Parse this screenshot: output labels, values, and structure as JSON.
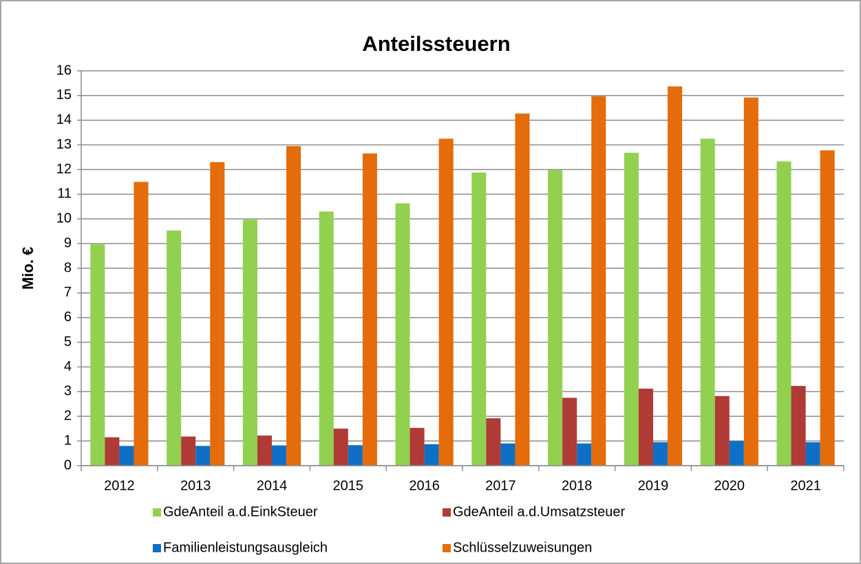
{
  "chart_data": {
    "type": "bar",
    "title": "Anteilssteuern",
    "y_label": "Mio. €",
    "categories": [
      "2012",
      "2013",
      "2014",
      "2015",
      "2016",
      "2017",
      "2018",
      "2019",
      "2020",
      "2021"
    ],
    "series": [
      {
        "name": "GdeAnteil a.d.EinkSteuer",
        "color": "#92d050",
        "values": [
          8.97,
          9.53,
          9.97,
          10.3,
          10.63,
          11.88,
          11.98,
          12.68,
          13.25,
          12.33
        ]
      },
      {
        "name": "GdeAnteil a.d.Umsatzsteuer",
        "color": "#b03a36",
        "values": [
          1.15,
          1.18,
          1.22,
          1.5,
          1.53,
          1.92,
          2.75,
          3.12,
          2.82,
          3.23
        ]
      },
      {
        "name": "Familienleistungsausgleich",
        "color": "#0f6fc6",
        "values": [
          0.8,
          0.8,
          0.82,
          0.83,
          0.87,
          0.9,
          0.9,
          0.95,
          1.0,
          0.95
        ]
      },
      {
        "name": "Schlüsselzuweisungen",
        "color": "#e46c0a",
        "values": [
          11.5,
          12.3,
          12.95,
          12.65,
          13.25,
          14.27,
          14.97,
          15.37,
          14.92,
          12.78
        ]
      }
    ],
    "ylim": [
      0,
      16
    ],
    "yticks": [
      0,
      1,
      2,
      3,
      4,
      5,
      6,
      7,
      8,
      9,
      10,
      11,
      12,
      13,
      14,
      15,
      16
    ],
    "grid": true,
    "legend": "bottom"
  }
}
